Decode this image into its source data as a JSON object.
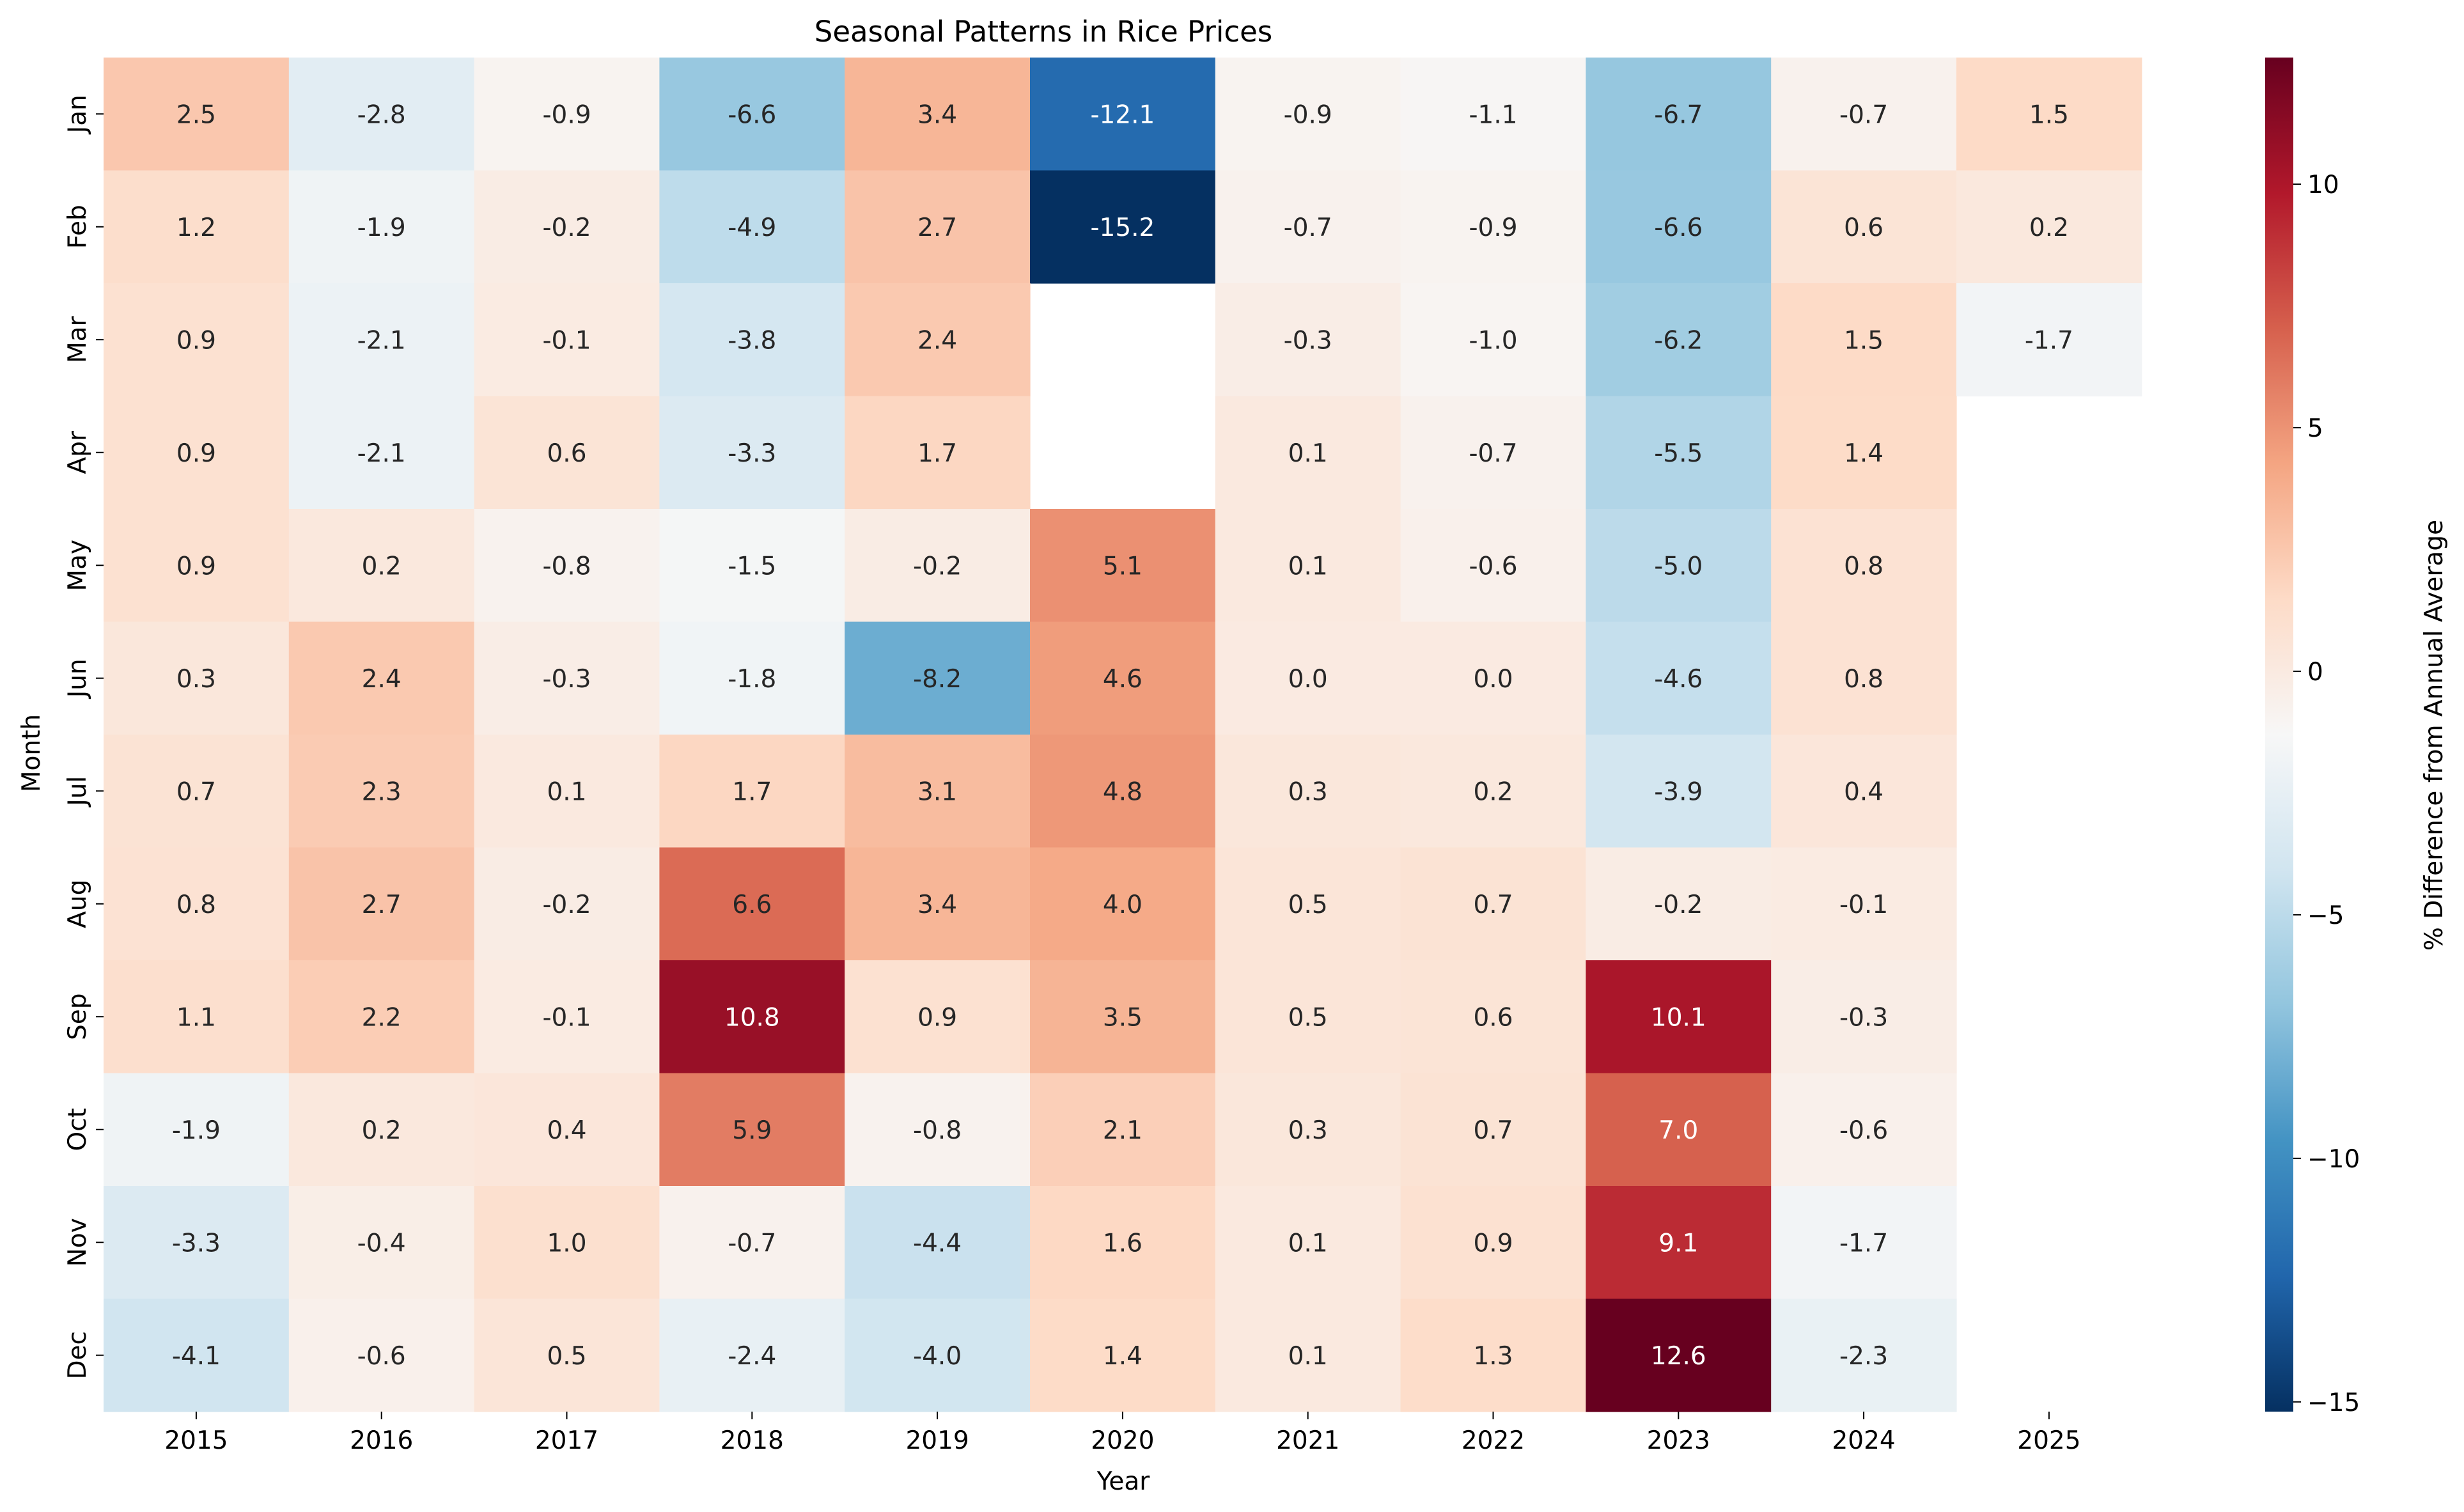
{
  "chart_data": {
    "type": "heatmap",
    "title": "Seasonal Patterns in Rice Prices",
    "xlabel": "Year",
    "ylabel": "Month",
    "colorbar_label": "% Difference from Annual Average",
    "colormap": "RdBu_r",
    "vmin": -15.2,
    "vmax": 12.6,
    "colorbar_ticks": [
      -15,
      -10,
      -5,
      0,
      5,
      10
    ],
    "x_categories": [
      "2015",
      "2016",
      "2017",
      "2018",
      "2019",
      "2020",
      "2021",
      "2022",
      "2023",
      "2024",
      "2025"
    ],
    "y_categories": [
      "Jan",
      "Feb",
      "Mar",
      "Apr",
      "May",
      "Jun",
      "Jul",
      "Aug",
      "Sep",
      "Oct",
      "Nov",
      "Dec"
    ],
    "values": [
      [
        2.5,
        -2.8,
        -0.9,
        -6.6,
        3.4,
        -12.1,
        -0.9,
        -1.1,
        -6.7,
        -0.7,
        1.5
      ],
      [
        1.2,
        -1.9,
        -0.2,
        -4.9,
        2.7,
        -15.2,
        -0.7,
        -0.9,
        -6.6,
        0.6,
        0.2
      ],
      [
        0.9,
        -2.1,
        -0.1,
        -3.8,
        2.4,
        null,
        -0.3,
        -1.0,
        -6.2,
        1.5,
        -1.7
      ],
      [
        0.9,
        -2.1,
        0.6,
        -3.3,
        1.7,
        null,
        0.1,
        -0.7,
        -5.5,
        1.4,
        null
      ],
      [
        0.9,
        0.2,
        -0.8,
        -1.5,
        -0.2,
        5.1,
        0.1,
        -0.6,
        -5.0,
        0.8,
        null
      ],
      [
        0.3,
        2.4,
        -0.3,
        -1.8,
        -8.2,
        4.6,
        -0.0,
        -0.0,
        -4.6,
        0.8,
        null
      ],
      [
        0.7,
        2.3,
        0.1,
        1.7,
        3.1,
        4.8,
        0.3,
        0.2,
        -3.9,
        0.4,
        null
      ],
      [
        0.8,
        2.7,
        -0.2,
        6.6,
        3.4,
        4.0,
        0.5,
        0.7,
        -0.2,
        -0.1,
        null
      ],
      [
        1.1,
        2.2,
        -0.1,
        10.8,
        0.9,
        3.5,
        0.5,
        0.6,
        10.1,
        -0.3,
        null
      ],
      [
        -1.9,
        0.2,
        0.4,
        5.9,
        -0.8,
        2.1,
        0.3,
        0.7,
        7.0,
        -0.6,
        null
      ],
      [
        -3.3,
        -0.4,
        1.0,
        -0.7,
        -4.4,
        1.6,
        0.1,
        0.9,
        9.1,
        -1.7,
        null
      ],
      [
        -4.1,
        -0.6,
        0.5,
        -2.4,
        -4.0,
        1.4,
        0.1,
        1.3,
        12.6,
        -2.3,
        null
      ]
    ]
  }
}
